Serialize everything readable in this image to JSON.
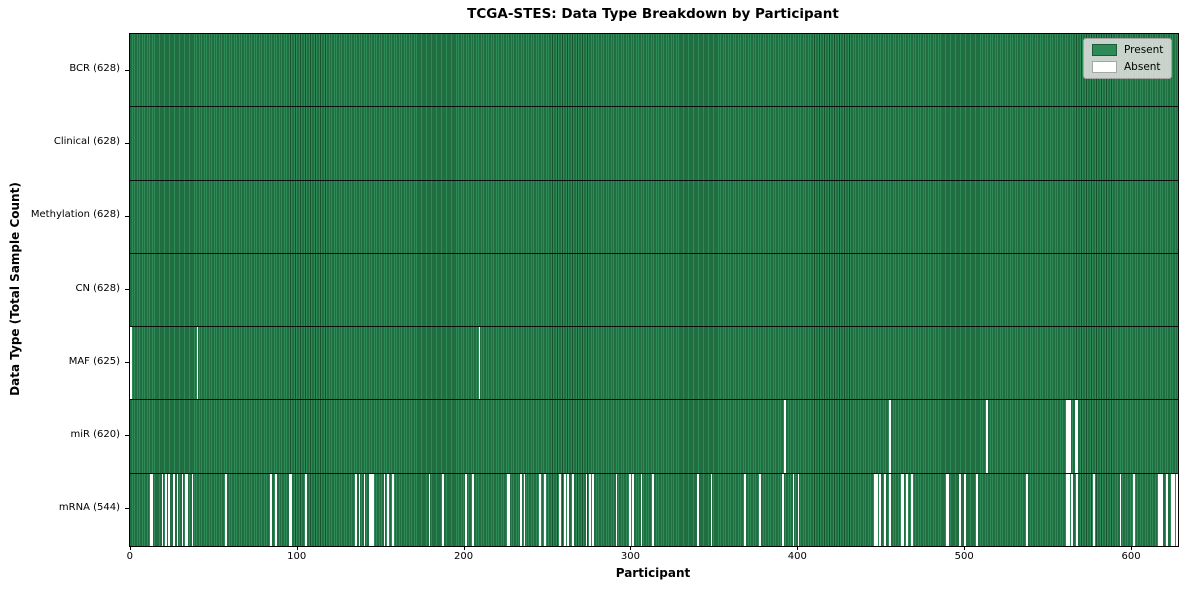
{
  "title": "TCGA-STES: Data Type Breakdown by Participant",
  "axes": {
    "x_label": "Participant",
    "y_label": "Data Type (Total Sample Count)"
  },
  "legend": {
    "items": [
      {
        "label": "Present",
        "color": "#2e8b57"
      },
      {
        "label": "Absent",
        "color": "#ffffff"
      }
    ],
    "position": "upper right"
  },
  "colors": {
    "present": "#2e8b57",
    "present_edge": "#17522f",
    "absent": "#ffffff",
    "row_separator": "#0c0c0c",
    "axis": "#000000",
    "legend_bg": "#d7dbd7"
  },
  "chart_data": {
    "type": "heatmap",
    "title": "TCGA-STES: Data Type Breakdown by Participant",
    "xlabel": "Participant",
    "ylabel": "Data Type (Total Sample Count)",
    "n_participants": 628,
    "x_ticks": [
      0,
      100,
      200,
      300,
      400,
      500,
      600
    ],
    "xlim": [
      -0.5,
      627.5
    ],
    "grid": false,
    "legend_entries": [
      "Present",
      "Absent"
    ],
    "legend_position": "upper right",
    "rows": [
      {
        "name": "BCR",
        "label": "BCR (628)",
        "present_count": 628,
        "absent_participants": []
      },
      {
        "name": "Clinical",
        "label": "Clinical (628)",
        "present_count": 628,
        "absent_participants": []
      },
      {
        "name": "Methylation",
        "label": "Methylation (628)",
        "present_count": 628,
        "absent_participants": []
      },
      {
        "name": "CN",
        "label": "CN (628)",
        "present_count": 628,
        "absent_participants": []
      },
      {
        "name": "MAF",
        "label": "MAF (625)",
        "present_count": 625,
        "absent_participants": [
          0,
          40,
          209
        ]
      },
      {
        "name": "miR",
        "label": "miR (620)",
        "present_count": 620,
        "absent_participants": [
          392,
          455,
          513,
          561,
          562,
          563,
          566,
          567
        ]
      },
      {
        "name": "mRNA",
        "label": "mRNA (544)",
        "present_count": 544,
        "absent_participants": [
          12,
          13,
          19,
          21,
          23,
          26,
          28,
          31,
          33,
          34,
          37,
          57,
          84,
          87,
          95,
          96,
          105,
          135,
          137,
          140,
          143,
          144,
          145,
          152,
          154,
          157,
          179,
          187,
          201,
          205,
          226,
          227,
          234,
          236,
          245,
          248,
          257,
          260,
          262,
          265,
          273,
          275,
          277,
          291,
          299,
          301,
          306,
          313,
          340,
          348,
          368,
          377,
          391,
          397,
          400,
          446,
          447,
          449,
          452,
          455,
          462,
          463,
          465,
          468,
          489,
          490,
          497,
          500,
          507,
          537,
          561,
          562,
          564,
          567,
          577,
          593,
          601,
          616,
          617,
          618,
          621,
          624,
          625,
          627
        ]
      }
    ]
  }
}
